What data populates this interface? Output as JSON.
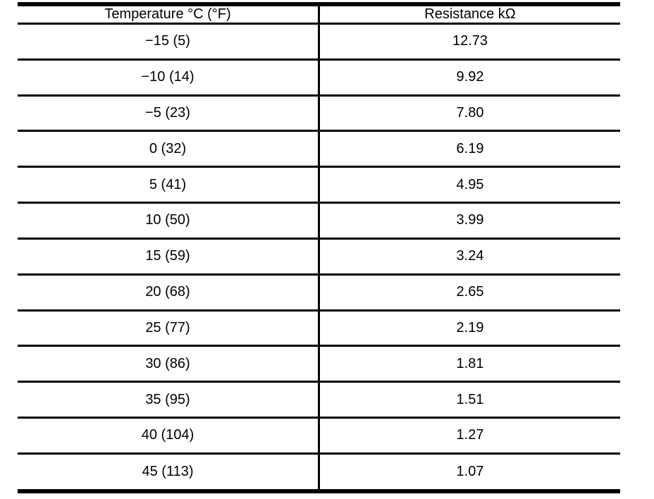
{
  "table": {
    "columns": [
      {
        "label": "Temperature °C (°F)"
      },
      {
        "label": "Resistance kΩ"
      }
    ],
    "rows": [
      {
        "temperature": "−15 (5)",
        "resistance": "12.73"
      },
      {
        "temperature": "−10 (14)",
        "resistance": "9.92"
      },
      {
        "temperature": "−5 (23)",
        "resistance": "7.80"
      },
      {
        "temperature": "0 (32)",
        "resistance": "6.19"
      },
      {
        "temperature": "5 (41)",
        "resistance": "4.95"
      },
      {
        "temperature": "10 (50)",
        "resistance": "3.99"
      },
      {
        "temperature": "15 (59)",
        "resistance": "3.24"
      },
      {
        "temperature": "20 (68)",
        "resistance": "2.65"
      },
      {
        "temperature": "25 (77)",
        "resistance": "2.19"
      },
      {
        "temperature": "30 (86)",
        "resistance": "1.81"
      },
      {
        "temperature": "35 (95)",
        "resistance": "1.51"
      },
      {
        "temperature": "40 (104)",
        "resistance": "1.27"
      },
      {
        "temperature": "45 (113)",
        "resistance": "1.07"
      }
    ]
  },
  "colors": {
    "background": "#ffffff",
    "border": "#000000",
    "text": "#000000"
  },
  "chart_data": {
    "type": "table",
    "columns": [
      "Temperature °C (°F)",
      "Resistance kΩ"
    ],
    "temperature_c": [
      -15,
      -10,
      -5,
      0,
      5,
      10,
      15,
      20,
      25,
      30,
      35,
      40,
      45
    ],
    "temperature_f": [
      5,
      14,
      23,
      32,
      41,
      50,
      59,
      68,
      77,
      86,
      95,
      104,
      113
    ],
    "resistance_kohm": [
      12.73,
      9.92,
      7.8,
      6.19,
      4.95,
      3.99,
      3.24,
      2.65,
      2.19,
      1.81,
      1.51,
      1.27,
      1.07
    ]
  }
}
